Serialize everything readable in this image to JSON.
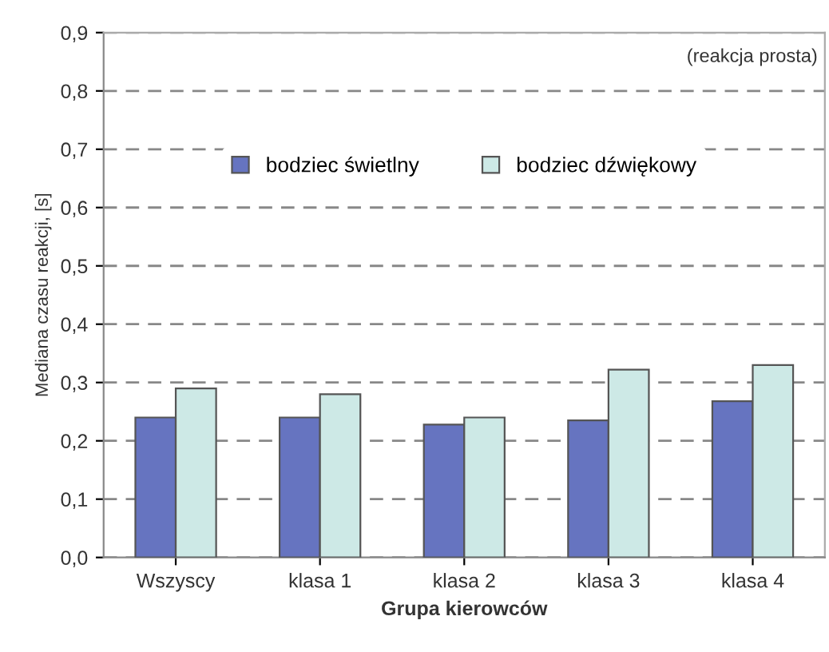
{
  "chart_data": {
    "type": "bar",
    "xlabel": "Grupa kierowców",
    "ylabel": "Mediana czasu reakcji, [s]",
    "categories": [
      "Wszyscy",
      "klasa 1",
      "klasa 2",
      "klasa 3",
      "klasa 4"
    ],
    "series": [
      {
        "name": "bodziec świetlny",
        "color": "#6674c0",
        "values": [
          0.24,
          0.24,
          0.228,
          0.235,
          0.268
        ]
      },
      {
        "name": "bodziec dźwiękowy",
        "color": "#cde9e6",
        "values": [
          0.29,
          0.28,
          0.24,
          0.322,
          0.33
        ]
      }
    ],
    "ylim": [
      0,
      0.9
    ],
    "yticks": [
      {
        "value": 0,
        "label": "0,0"
      },
      {
        "value": 0.1,
        "label": "0,1"
      },
      {
        "value": 0.2,
        "label": "0,2"
      },
      {
        "value": 0.3,
        "label": "0,3"
      },
      {
        "value": 0.4,
        "label": "0,4"
      },
      {
        "value": 0.5,
        "label": "0,5"
      },
      {
        "value": 0.6,
        "label": "0,6"
      },
      {
        "value": 0.7,
        "label": "0,7"
      },
      {
        "value": 0.8,
        "label": "0,8"
      },
      {
        "value": 0.9,
        "label": "0,9"
      }
    ],
    "grid": "y",
    "legend": "top",
    "annotations": [
      "(reakcja prosta)"
    ]
  }
}
